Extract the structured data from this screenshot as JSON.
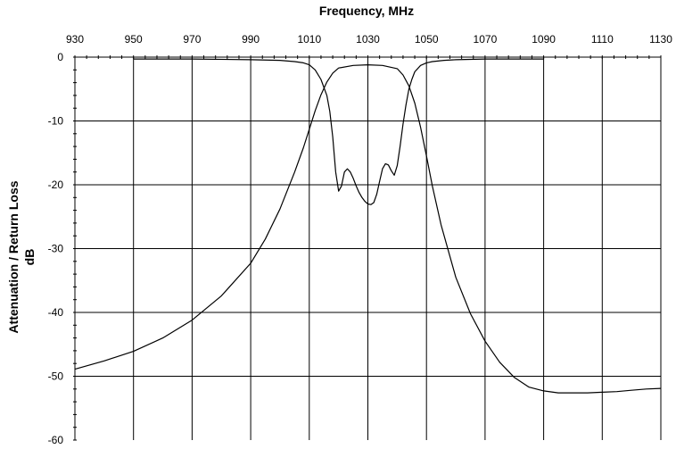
{
  "chart_data": {
    "type": "line",
    "title": "Frequency, MHz",
    "xlabel": "Frequency, MHz",
    "ylabel_line1": "Attenuation / Return Loss",
    "ylabel_line2": "dB",
    "xlim": [
      930,
      1130
    ],
    "ylim": [
      -60,
      0
    ],
    "x_ticks": [
      930,
      950,
      970,
      990,
      1010,
      1030,
      1050,
      1070,
      1090,
      1110,
      1130
    ],
    "x_tick_labels": [
      "930",
      "950",
      "970",
      "990",
      "1010",
      "1030",
      "1050",
      "1070",
      "1090",
      "1110",
      "1130"
    ],
    "y_ticks": [
      0,
      -10,
      -20,
      -30,
      -40,
      -50,
      -60
    ],
    "y_tick_labels": [
      "0",
      "-10",
      "-20",
      "-30",
      "-40",
      "-50",
      "-60"
    ],
    "grid": true,
    "x_axis_position": "top",
    "series": [
      {
        "x": [
          930,
          940,
          950,
          960,
          970,
          980,
          990,
          995,
          1000,
          1005,
          1008,
          1010,
          1012,
          1014,
          1016,
          1018,
          1020,
          1025,
          1030,
          1035,
          1040,
          1042,
          1044,
          1046,
          1048,
          1050,
          1052,
          1055,
          1060,
          1065,
          1070,
          1075,
          1080,
          1085,
          1090,
          1095,
          1100,
          1105,
          1110,
          1115,
          1120,
          1125,
          1130
        ],
        "values": [
          -48.9,
          -47.6,
          -46.1,
          -44.0,
          -41.2,
          -37.4,
          -32.3,
          -28.5,
          -23.8,
          -18.0,
          -14.2,
          -11.3,
          -8.4,
          -5.9,
          -3.9,
          -2.5,
          -1.7,
          -1.3,
          -1.2,
          -1.3,
          -1.8,
          -2.8,
          -4.5,
          -7.2,
          -11.0,
          -15.5,
          -20.2,
          -26.3,
          -34.5,
          -40.2,
          -44.5,
          -47.8,
          -50.2,
          -51.7,
          -52.3,
          -52.6,
          -52.6,
          -52.6,
          -52.5,
          -52.4,
          -52.2,
          -52.0,
          -51.9
        ]
      },
      {
        "x": [
          950,
          970,
          990,
          1000,
          1005,
          1008,
          1010,
          1012,
          1014,
          1016,
          1017,
          1018,
          1019,
          1020,
          1021,
          1022,
          1023,
          1024,
          1025,
          1026,
          1027,
          1028,
          1029,
          1030,
          1031,
          1032,
          1033,
          1034,
          1035,
          1036,
          1037,
          1038,
          1039,
          1040,
          1041,
          1042,
          1043,
          1044,
          1045,
          1046,
          1048,
          1050,
          1052,
          1056,
          1060,
          1070,
          1090
        ],
        "values": [
          -0.3,
          -0.3,
          -0.4,
          -0.5,
          -0.7,
          -0.9,
          -1.2,
          -2.0,
          -3.5,
          -6.0,
          -8.5,
          -12.5,
          -18.0,
          -21.0,
          -20.2,
          -18.0,
          -17.5,
          -18.0,
          -19.0,
          -20.2,
          -21.2,
          -22.0,
          -22.6,
          -23.0,
          -23.1,
          -22.8,
          -21.5,
          -19.5,
          -17.5,
          -16.7,
          -16.9,
          -17.8,
          -18.5,
          -17.0,
          -14.0,
          -10.5,
          -7.5,
          -5.0,
          -3.5,
          -2.3,
          -1.3,
          -0.9,
          -0.7,
          -0.5,
          -0.4,
          -0.3,
          -0.3
        ]
      }
    ]
  }
}
